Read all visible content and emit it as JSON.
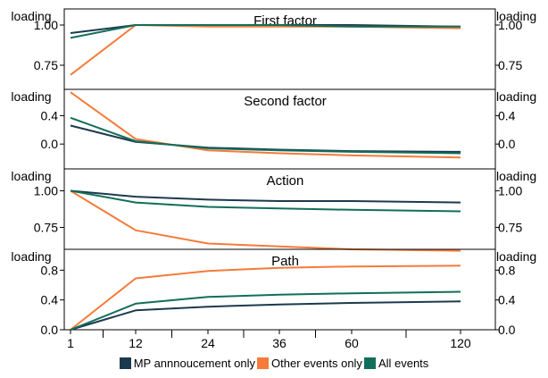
{
  "chart_data": {
    "type": "line",
    "x": [
      "1",
      "12",
      "24",
      "36",
      "60",
      "120"
    ],
    "series_names": [
      "MP annnoucement only",
      "Other events only",
      "All events"
    ],
    "colors": [
      "#1c3a4f",
      "#f47b3a",
      "#126e5a"
    ],
    "panels": [
      {
        "title": "First factor",
        "ylabel": "loading",
        "ylim": [
          0.6,
          1.1
        ],
        "ticks": [
          1.0,
          0.75
        ],
        "tick_labels": [
          "1.00",
          "0.75"
        ],
        "series": [
          {
            "name": "MP annnoucement only",
            "values": [
              0.95,
              1.0,
              1.0,
              1.0,
              1.0,
              0.99
            ]
          },
          {
            "name": "Other events only",
            "values": [
              0.69,
              1.0,
              0.99,
              0.99,
              0.99,
              0.98
            ]
          },
          {
            "name": "All events",
            "values": [
              0.92,
              1.0,
              1.0,
              1.0,
              0.99,
              0.99
            ]
          }
        ]
      },
      {
        "title": "Second factor",
        "ylabel": "loading",
        "ylim": [
          -0.35,
          0.77
        ],
        "ticks": [
          0.4,
          0.0
        ],
        "tick_labels": [
          "0.4",
          "0.0"
        ],
        "series": [
          {
            "name": "MP annnoucement only",
            "values": [
              0.26,
              0.03,
              -0.05,
              -0.08,
              -0.1,
              -0.11
            ]
          },
          {
            "name": "Other events only",
            "values": [
              0.73,
              0.07,
              -0.09,
              -0.13,
              -0.16,
              -0.19
            ]
          },
          {
            "name": "All events",
            "values": [
              0.37,
              0.04,
              -0.06,
              -0.09,
              -0.11,
              -0.13
            ]
          }
        ]
      },
      {
        "title": "Action",
        "ylabel": "loading",
        "ylim": [
          0.6,
          1.15
        ],
        "ticks": [
          1.0,
          0.75
        ],
        "tick_labels": [
          "1.00",
          "0.75"
        ],
        "series": [
          {
            "name": "MP annnoucement only",
            "values": [
              1.0,
              0.96,
              0.94,
              0.93,
              0.93,
              0.92
            ]
          },
          {
            "name": "Other events only",
            "values": [
              1.0,
              0.73,
              0.64,
              0.62,
              0.6,
              0.59
            ]
          },
          {
            "name": "All events",
            "values": [
              1.0,
              0.92,
              0.89,
              0.88,
              0.87,
              0.86
            ]
          }
        ]
      },
      {
        "title": "Path",
        "ylabel": "loading",
        "ylim": [
          0.0,
          1.08
        ],
        "ticks": [
          0.8,
          0.4,
          0.0
        ],
        "tick_labels": [
          "0.8",
          "0.4",
          "0.0"
        ],
        "series": [
          {
            "name": "MP annnoucement only",
            "values": [
              0.0,
              0.26,
              0.31,
              0.34,
              0.36,
              0.38
            ]
          },
          {
            "name": "Other events only",
            "values": [
              0.0,
              0.69,
              0.79,
              0.83,
              0.85,
              0.86
            ]
          },
          {
            "name": "All events",
            "values": [
              0.0,
              0.35,
              0.44,
              0.47,
              0.49,
              0.51
            ]
          }
        ]
      }
    ]
  }
}
